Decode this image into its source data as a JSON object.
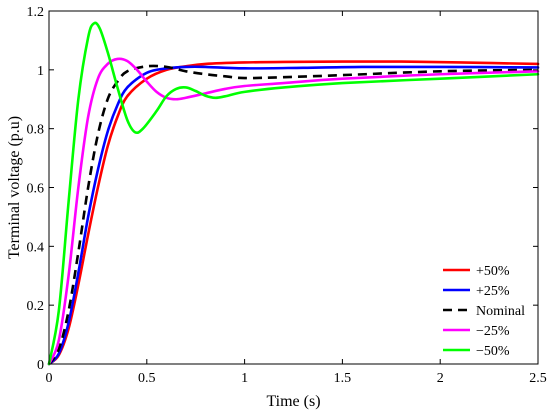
{
  "chart_data": {
    "type": "line",
    "title": "",
    "xlabel": "Time (s)",
    "ylabel": "Terminal voltage (p.u)",
    "xlim": [
      0,
      2.5
    ],
    "ylim": [
      0,
      1.2
    ],
    "xticks": [
      0,
      0.5,
      1,
      1.5,
      2,
      2.5
    ],
    "xtick_labels": [
      "0",
      "0.5",
      "1",
      "1.5",
      "2",
      "2.5"
    ],
    "yticks": [
      0,
      0.2,
      0.4,
      0.6,
      0.8,
      1,
      1.2
    ],
    "ytick_labels": [
      "0",
      "0.2",
      "0.4",
      "0.6",
      "0.8",
      "1",
      "1.2"
    ],
    "grid": false,
    "legend_position": "bottom-right",
    "series": [
      {
        "name": "+50%",
        "color": "#ff0000",
        "dash": "solid",
        "points": [
          [
            0,
            0
          ],
          [
            0.05,
            0.03
          ],
          [
            0.1,
            0.12
          ],
          [
            0.15,
            0.27
          ],
          [
            0.2,
            0.44
          ],
          [
            0.25,
            0.6
          ],
          [
            0.3,
            0.74
          ],
          [
            0.35,
            0.84
          ],
          [
            0.4,
            0.91
          ],
          [
            0.5,
            0.97
          ],
          [
            0.6,
            1.0
          ],
          [
            0.7,
            1.012
          ],
          [
            0.8,
            1.02
          ],
          [
            1.0,
            1.025
          ],
          [
            1.2,
            1.027
          ],
          [
            1.5,
            1.028
          ],
          [
            1.8,
            1.028
          ],
          [
            2.1,
            1.025
          ],
          [
            2.5,
            1.02
          ]
        ]
      },
      {
        "name": "+25%",
        "color": "#0000ff",
        "dash": "solid",
        "points": [
          [
            0,
            0
          ],
          [
            0.05,
            0.035
          ],
          [
            0.1,
            0.14
          ],
          [
            0.15,
            0.31
          ],
          [
            0.2,
            0.5
          ],
          [
            0.25,
            0.66
          ],
          [
            0.3,
            0.79
          ],
          [
            0.35,
            0.88
          ],
          [
            0.4,
            0.94
          ],
          [
            0.5,
            0.99
          ],
          [
            0.6,
            1.005
          ],
          [
            0.7,
            1.01
          ],
          [
            0.8,
            1.01
          ],
          [
            1.0,
            1.005
          ],
          [
            1.3,
            1.007
          ],
          [
            1.6,
            1.01
          ],
          [
            2.0,
            1.01
          ],
          [
            2.5,
            1.008
          ]
        ]
      },
      {
        "name": "Nominal",
        "color": "#000000",
        "dash": "dashed",
        "points": [
          [
            0,
            0
          ],
          [
            0.05,
            0.05
          ],
          [
            0.1,
            0.18
          ],
          [
            0.15,
            0.38
          ],
          [
            0.2,
            0.6
          ],
          [
            0.25,
            0.78
          ],
          [
            0.3,
            0.9
          ],
          [
            0.35,
            0.96
          ],
          [
            0.4,
            0.995
          ],
          [
            0.5,
            1.012
          ],
          [
            0.6,
            1.01
          ],
          [
            0.7,
            0.995
          ],
          [
            0.8,
            0.985
          ],
          [
            0.9,
            0.978
          ],
          [
            1.0,
            0.972
          ],
          [
            1.2,
            0.975
          ],
          [
            1.5,
            0.982
          ],
          [
            2.0,
            0.995
          ],
          [
            2.5,
            1.0
          ]
        ]
      },
      {
        "name": "−25%",
        "color": "#ff00ff",
        "dash": "solid",
        "points": [
          [
            0,
            0
          ],
          [
            0.05,
            0.08
          ],
          [
            0.1,
            0.3
          ],
          [
            0.15,
            0.6
          ],
          [
            0.2,
            0.84
          ],
          [
            0.25,
            0.97
          ],
          [
            0.3,
            1.02
          ],
          [
            0.35,
            1.037
          ],
          [
            0.4,
            1.03
          ],
          [
            0.45,
            1.0
          ],
          [
            0.5,
            0.96
          ],
          [
            0.55,
            0.925
          ],
          [
            0.6,
            0.905
          ],
          [
            0.65,
            0.9
          ],
          [
            0.7,
            0.905
          ],
          [
            0.8,
            0.92
          ],
          [
            0.9,
            0.935
          ],
          [
            1.0,
            0.945
          ],
          [
            1.2,
            0.955
          ],
          [
            1.5,
            0.97
          ],
          [
            2.0,
            0.985
          ],
          [
            2.5,
            0.995
          ]
        ]
      },
      {
        "name": "−50%",
        "color": "#00ff00",
        "dash": "solid",
        "points": [
          [
            0,
            0
          ],
          [
            0.05,
            0.18
          ],
          [
            0.1,
            0.55
          ],
          [
            0.15,
            0.9
          ],
          [
            0.2,
            1.11
          ],
          [
            0.23,
            1.158
          ],
          [
            0.26,
            1.14
          ],
          [
            0.3,
            1.06
          ],
          [
            0.35,
            0.94
          ],
          [
            0.4,
            0.83
          ],
          [
            0.44,
            0.788
          ],
          [
            0.48,
            0.8
          ],
          [
            0.55,
            0.86
          ],
          [
            0.6,
            0.91
          ],
          [
            0.65,
            0.935
          ],
          [
            0.7,
            0.94
          ],
          [
            0.75,
            0.928
          ],
          [
            0.8,
            0.912
          ],
          [
            0.85,
            0.905
          ],
          [
            0.9,
            0.91
          ],
          [
            1.0,
            0.925
          ],
          [
            1.2,
            0.94
          ],
          [
            1.5,
            0.955
          ],
          [
            2.0,
            0.97
          ],
          [
            2.5,
            0.985
          ]
        ]
      }
    ]
  }
}
